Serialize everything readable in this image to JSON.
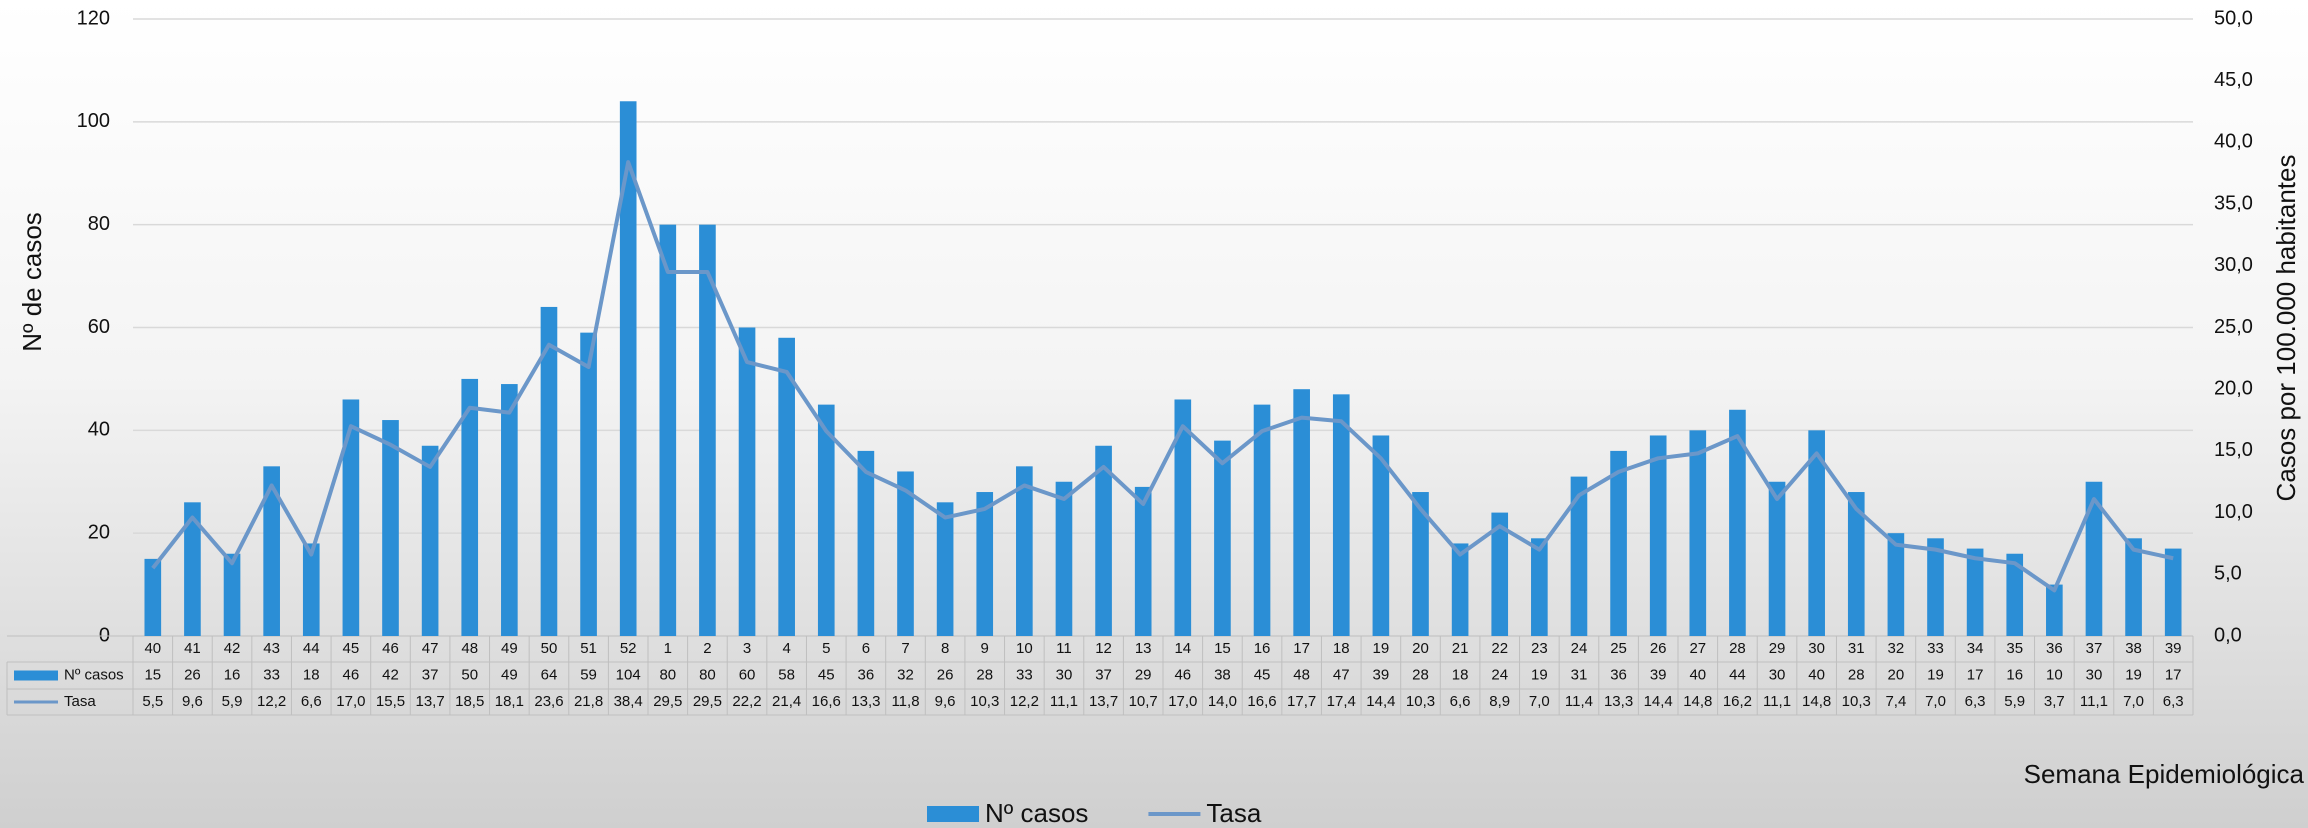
{
  "chart_data": {
    "type": "bar-line",
    "x_label": "Semana Epidemiológica",
    "y_label": "Nº de casos",
    "y2_label": "Casos por 100.000  habitantes",
    "categories": [
      "40",
      "41",
      "42",
      "43",
      "44",
      "45",
      "46",
      "47",
      "48",
      "49",
      "50",
      "51",
      "52",
      "1",
      "2",
      "3",
      "4",
      "5",
      "6",
      "7",
      "8",
      "9",
      "10",
      "11",
      "12",
      "13",
      "14",
      "15",
      "16",
      "17",
      "18",
      "19",
      "20",
      "21",
      "22",
      "23",
      "24",
      "25",
      "26",
      "27",
      "28",
      "29",
      "30",
      "31",
      "32",
      "33",
      "34",
      "35",
      "36",
      "37",
      "38",
      "39"
    ],
    "series": [
      {
        "name": "Nº casos",
        "type": "bar",
        "color": "#2b8ed6",
        "values": [
          15,
          26,
          16,
          33,
          18,
          46,
          42,
          37,
          50,
          49,
          64,
          59,
          104,
          80,
          80,
          60,
          58,
          45,
          36,
          32,
          26,
          28,
          33,
          30,
          37,
          29,
          46,
          38,
          45,
          48,
          47,
          39,
          28,
          18,
          24,
          19,
          31,
          36,
          39,
          40,
          44,
          30,
          40,
          28,
          20,
          19,
          17,
          16,
          10,
          30,
          19,
          17
        ]
      },
      {
        "name": "Tasa",
        "type": "line",
        "axis": "y2",
        "color": "#6b97c9",
        "values": [
          5.5,
          9.6,
          5.9,
          12.2,
          6.6,
          17.0,
          15.5,
          13.7,
          18.5,
          18.1,
          23.6,
          21.8,
          38.4,
          29.5,
          29.5,
          22.2,
          21.4,
          16.6,
          13.3,
          11.8,
          9.6,
          10.3,
          12.2,
          11.1,
          13.7,
          10.7,
          17.0,
          14.0,
          16.6,
          17.7,
          17.4,
          14.4,
          10.3,
          6.6,
          8.9,
          7.0,
          11.4,
          13.3,
          14.4,
          14.8,
          16.2,
          11.1,
          14.8,
          10.3,
          7.4,
          7.0,
          6.3,
          5.9,
          3.7,
          11.1,
          7.0,
          6.3
        ],
        "value_labels": [
          "5,5",
          "9,6",
          "5,9",
          "12,2",
          "6,6",
          "17,0",
          "15,5",
          "13,7",
          "18,5",
          "18,1",
          "23,6",
          "21,8",
          "38,4",
          "29,5",
          "29,5",
          "22,2",
          "21,4",
          "16,6",
          "13,3",
          "11,8",
          "9,6",
          "10,3",
          "12,2",
          "11,1",
          "13,7",
          "10,7",
          "17,0",
          "14,0",
          "16,6",
          "17,7",
          "17,4",
          "14,4",
          "10,3",
          "6,6",
          "8,9",
          "7,0",
          "11,4",
          "13,3",
          "14,4",
          "14,8",
          "16,2",
          "11,1",
          "14,8",
          "10,3",
          "7,4",
          "7,0",
          "6,3",
          "5,9",
          "3,7",
          "11,1",
          "7,0",
          "6,3"
        ]
      }
    ],
    "ylim": [
      0,
      120
    ],
    "yticks": [
      0,
      20,
      40,
      60,
      80,
      100,
      120
    ],
    "y2lim": [
      0,
      50
    ],
    "y2ticks": [
      {
        "value": 0,
        "label": "0,0"
      },
      {
        "value": 5,
        "label": "5,0"
      },
      {
        "value": 10,
        "label": "10,0"
      },
      {
        "value": 15,
        "label": "15,0"
      },
      {
        "value": 20,
        "label": "20,0"
      },
      {
        "value": 25,
        "label": "25,0"
      },
      {
        "value": 30,
        "label": "30,0"
      },
      {
        "value": 35,
        "label": "35,0"
      },
      {
        "value": 40,
        "label": "40,0"
      },
      {
        "value": 45,
        "label": "45,0"
      },
      {
        "value": 50,
        "label": "50,0"
      }
    ],
    "grid": true,
    "legend": "bottom"
  }
}
